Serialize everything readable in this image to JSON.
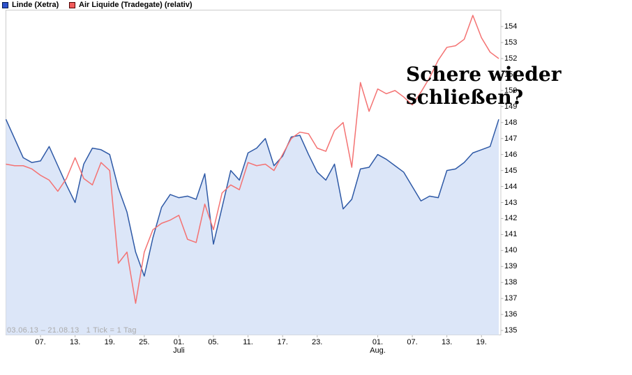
{
  "legend": {
    "items": [
      {
        "label": "Linde (Xetra)",
        "color": "#2d52cc",
        "border": "#001a4d"
      },
      {
        "label": "Air Liquide (Tradegate) (relativ)",
        "color": "#f25c5c",
        "border": "#4d0000"
      }
    ]
  },
  "annotation": {
    "line1": "Schere wieder",
    "line2": "schließen?"
  },
  "footer": "03.06.13 – 21.08.13   1 Tick = 1 Tag",
  "colors": {
    "linde_line": "#2e59a6",
    "linde_fill": "#dce6f8",
    "airliquide_line": "#f47272",
    "plot_border": "#cccccc",
    "tick": "#b5b5b5"
  },
  "chart_data": {
    "type": "line",
    "title": "",
    "xlabel": "",
    "ylabel": "",
    "grid": false,
    "legend_position": "top-left",
    "range_label": "03.06.13 – 21.08.13",
    "tick_note": "1 Tick = 1 Tag",
    "ylim": [
      134.7,
      155.05
    ],
    "y_ticks": [
      135,
      136,
      137,
      138,
      139,
      140,
      141,
      142,
      143,
      144,
      145,
      146,
      147,
      148,
      149,
      150,
      151,
      152,
      153,
      154
    ],
    "x_dates": [
      "03.06.13",
      "04.06.13",
      "05.06.13",
      "06.06.13",
      "07.06.13",
      "10.06.13",
      "11.06.13",
      "12.06.13",
      "13.06.13",
      "14.06.13",
      "17.06.13",
      "18.06.13",
      "19.06.13",
      "20.06.13",
      "21.06.13",
      "24.06.13",
      "25.06.13",
      "26.06.13",
      "27.06.13",
      "28.06.13",
      "01.07.13",
      "02.07.13",
      "03.07.13",
      "04.07.13",
      "05.07.13",
      "08.07.13",
      "09.07.13",
      "10.07.13",
      "11.07.13",
      "12.07.13",
      "15.07.13",
      "16.07.13",
      "17.07.13",
      "18.07.13",
      "19.07.13",
      "22.07.13",
      "23.07.13",
      "24.07.13",
      "25.07.13",
      "26.07.13",
      "29.07.13",
      "30.07.13",
      "31.07.13",
      "01.08.13",
      "02.08.13",
      "05.08.13",
      "06.08.13",
      "07.08.13",
      "08.08.13",
      "09.08.13",
      "12.08.13",
      "13.08.13",
      "14.08.13",
      "15.08.13",
      "16.08.13",
      "19.08.13",
      "20.08.13",
      "21.08.13"
    ],
    "x_ticks": [
      {
        "label": "07.",
        "i": 4
      },
      {
        "label": "13.",
        "i": 8
      },
      {
        "label": "19.",
        "i": 12
      },
      {
        "label": "25.",
        "i": 16
      },
      {
        "label": "01.",
        "i": 20
      },
      {
        "label": "05.",
        "i": 24
      },
      {
        "label": "11.",
        "i": 28
      },
      {
        "label": "17.",
        "i": 32
      },
      {
        "label": "23.",
        "i": 36
      },
      {
        "label": "01.",
        "i": 43
      },
      {
        "label": "07.",
        "i": 47
      },
      {
        "label": "13.",
        "i": 51
      },
      {
        "label": "19.",
        "i": 55
      }
    ],
    "month_labels": [
      {
        "label": "Juli",
        "i": 20
      },
      {
        "label": "Aug.",
        "i": 43
      }
    ],
    "series": [
      {
        "name": "Linde (Xetra)",
        "style": "area",
        "values": [
          148.2,
          147.0,
          145.8,
          145.5,
          145.6,
          146.5,
          145.3,
          144.1,
          143.0,
          145.4,
          146.4,
          146.3,
          146.0,
          143.9,
          142.4,
          139.9,
          138.4,
          140.8,
          142.7,
          143.5,
          143.3,
          143.4,
          143.2,
          144.8,
          140.4,
          142.7,
          145.0,
          144.4,
          146.1,
          146.4,
          147.0,
          145.3,
          145.9,
          147.1,
          147.2,
          146.0,
          144.9,
          144.4,
          145.4,
          142.6,
          143.2,
          145.1,
          145.2,
          146.0,
          145.7,
          145.3,
          144.9,
          144.0,
          143.1,
          143.4,
          143.3,
          145.0,
          145.1,
          145.5,
          146.1,
          146.3,
          146.5,
          148.2
        ]
      },
      {
        "name": "Air Liquide (Tradegate) (relativ)",
        "style": "line",
        "values": [
          145.4,
          145.3,
          145.3,
          145.1,
          144.7,
          144.4,
          143.7,
          144.5,
          145.8,
          144.5,
          144.1,
          145.5,
          145.0,
          139.2,
          139.9,
          136.7,
          139.9,
          141.3,
          141.7,
          141.9,
          142.2,
          140.7,
          140.5,
          142.9,
          141.3,
          143.6,
          144.1,
          143.8,
          145.5,
          145.3,
          145.4,
          145.0,
          146.0,
          147.0,
          147.4,
          147.3,
          146.4,
          146.2,
          147.5,
          148.0,
          145.2,
          150.5,
          148.7,
          150.1,
          149.8,
          150.0,
          149.6,
          149.1,
          149.9,
          150.8,
          151.9,
          152.7,
          152.8,
          153.2,
          154.7,
          153.3,
          152.4,
          152.0
        ]
      }
    ]
  }
}
